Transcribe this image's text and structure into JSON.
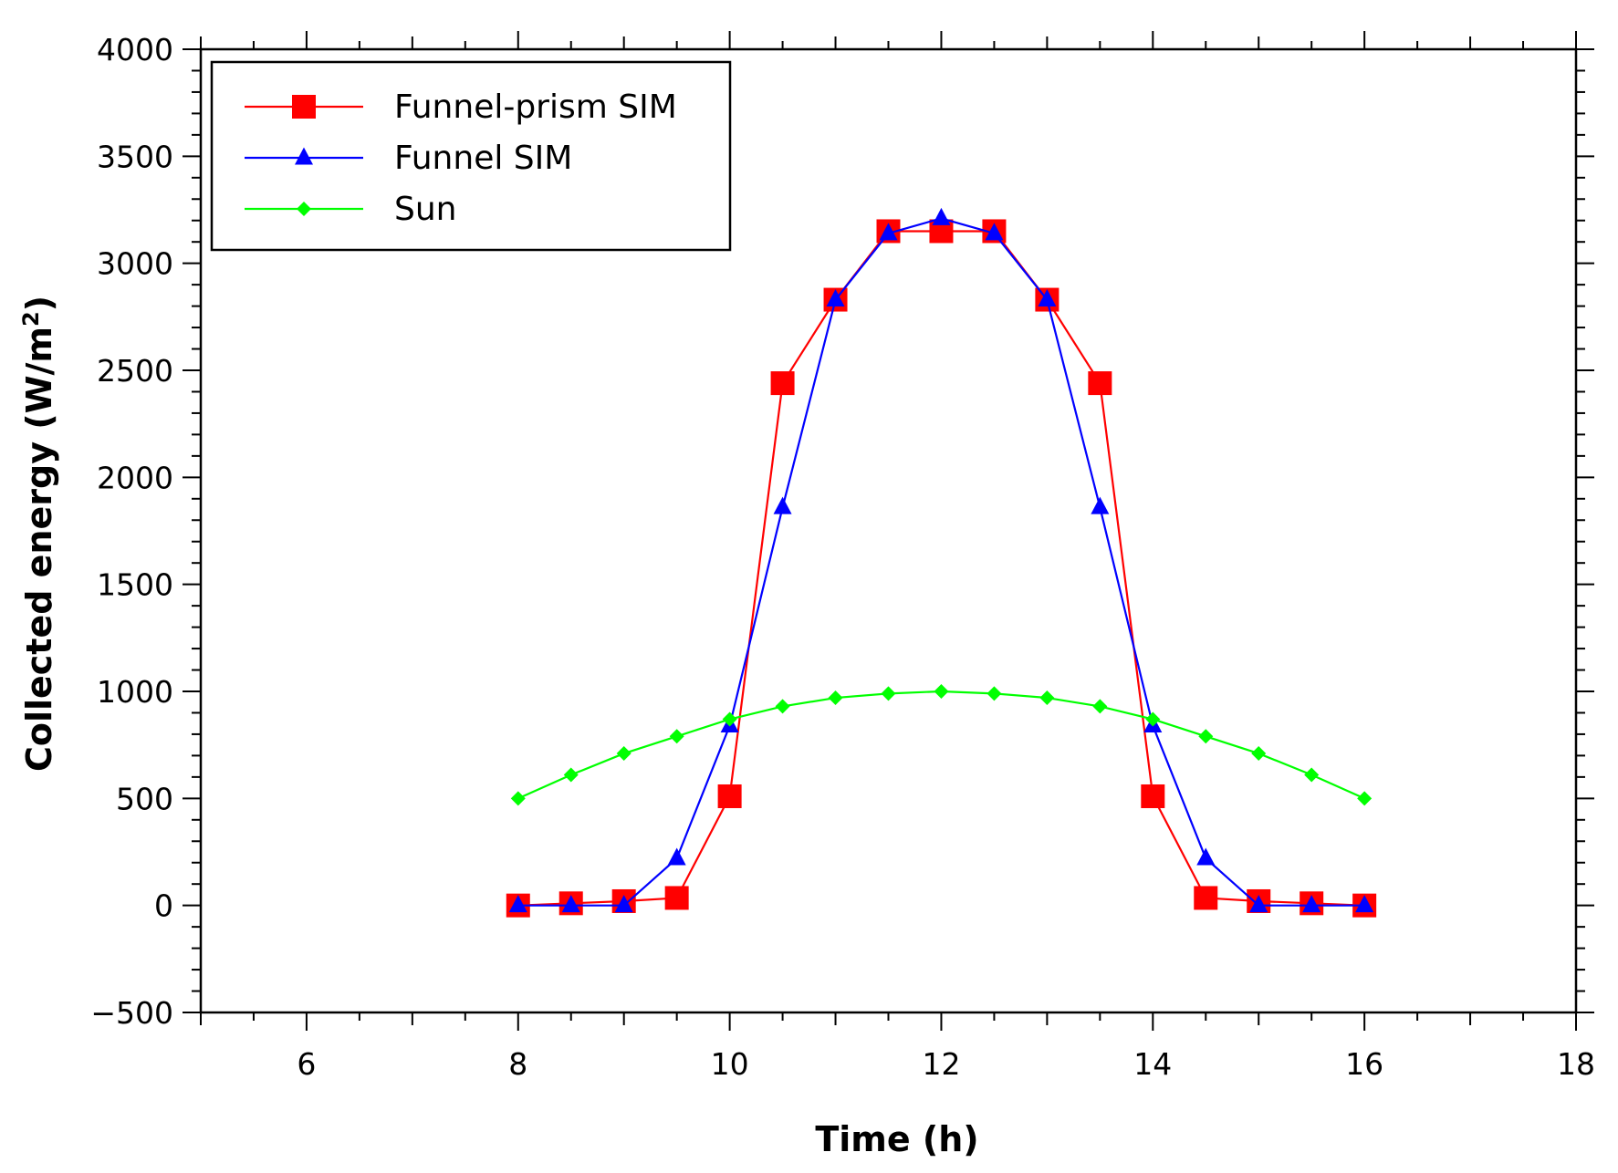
{
  "chart_data": {
    "type": "line",
    "title": "",
    "xlabel": "Time (h)",
    "ylabel": "Collected energy (W/m",
    "ylabel_sup": "2",
    "ylabel_end": ")",
    "xlim": [
      5,
      18
    ],
    "ylim": [
      -500,
      4000
    ],
    "xticks": [
      6,
      8,
      10,
      12,
      14,
      16,
      18
    ],
    "yticks": [
      -500,
      0,
      500,
      1000,
      1500,
      2000,
      2500,
      3000,
      3500,
      4000
    ],
    "xtick_labels": [
      "6",
      "8",
      "10",
      "12",
      "14",
      "16",
      "18"
    ],
    "ytick_labels": [
      "−500",
      "0",
      "500",
      "1000",
      "1500",
      "2000",
      "2500",
      "3000",
      "3500",
      "4000"
    ],
    "legend_position": "top-left",
    "x": [
      8,
      8.5,
      9,
      9.5,
      10,
      10.5,
      11,
      11.5,
      12,
      12.5,
      13,
      13.5,
      14,
      14.5,
      15,
      15.5,
      16
    ],
    "series": [
      {
        "name": "Funnel-prism SIM",
        "color": "#ff0000",
        "marker": "square",
        "values": [
          0,
          10,
          20,
          35,
          510,
          2440,
          2830,
          3150,
          3150,
          3150,
          2830,
          2440,
          510,
          35,
          20,
          10,
          0
        ]
      },
      {
        "name": "Funnel SIM",
        "color": "#0000ff",
        "marker": "triangle",
        "values": [
          0,
          0,
          0,
          220,
          840,
          1860,
          2830,
          3140,
          3210,
          3140,
          2830,
          1860,
          840,
          220,
          0,
          0,
          0
        ]
      },
      {
        "name": "Sun",
        "color": "#00ff00",
        "marker": "diamond",
        "values": [
          500,
          610,
          710,
          790,
          870,
          930,
          970,
          990,
          1000,
          990,
          970,
          930,
          870,
          790,
          710,
          610,
          500
        ]
      }
    ]
  }
}
